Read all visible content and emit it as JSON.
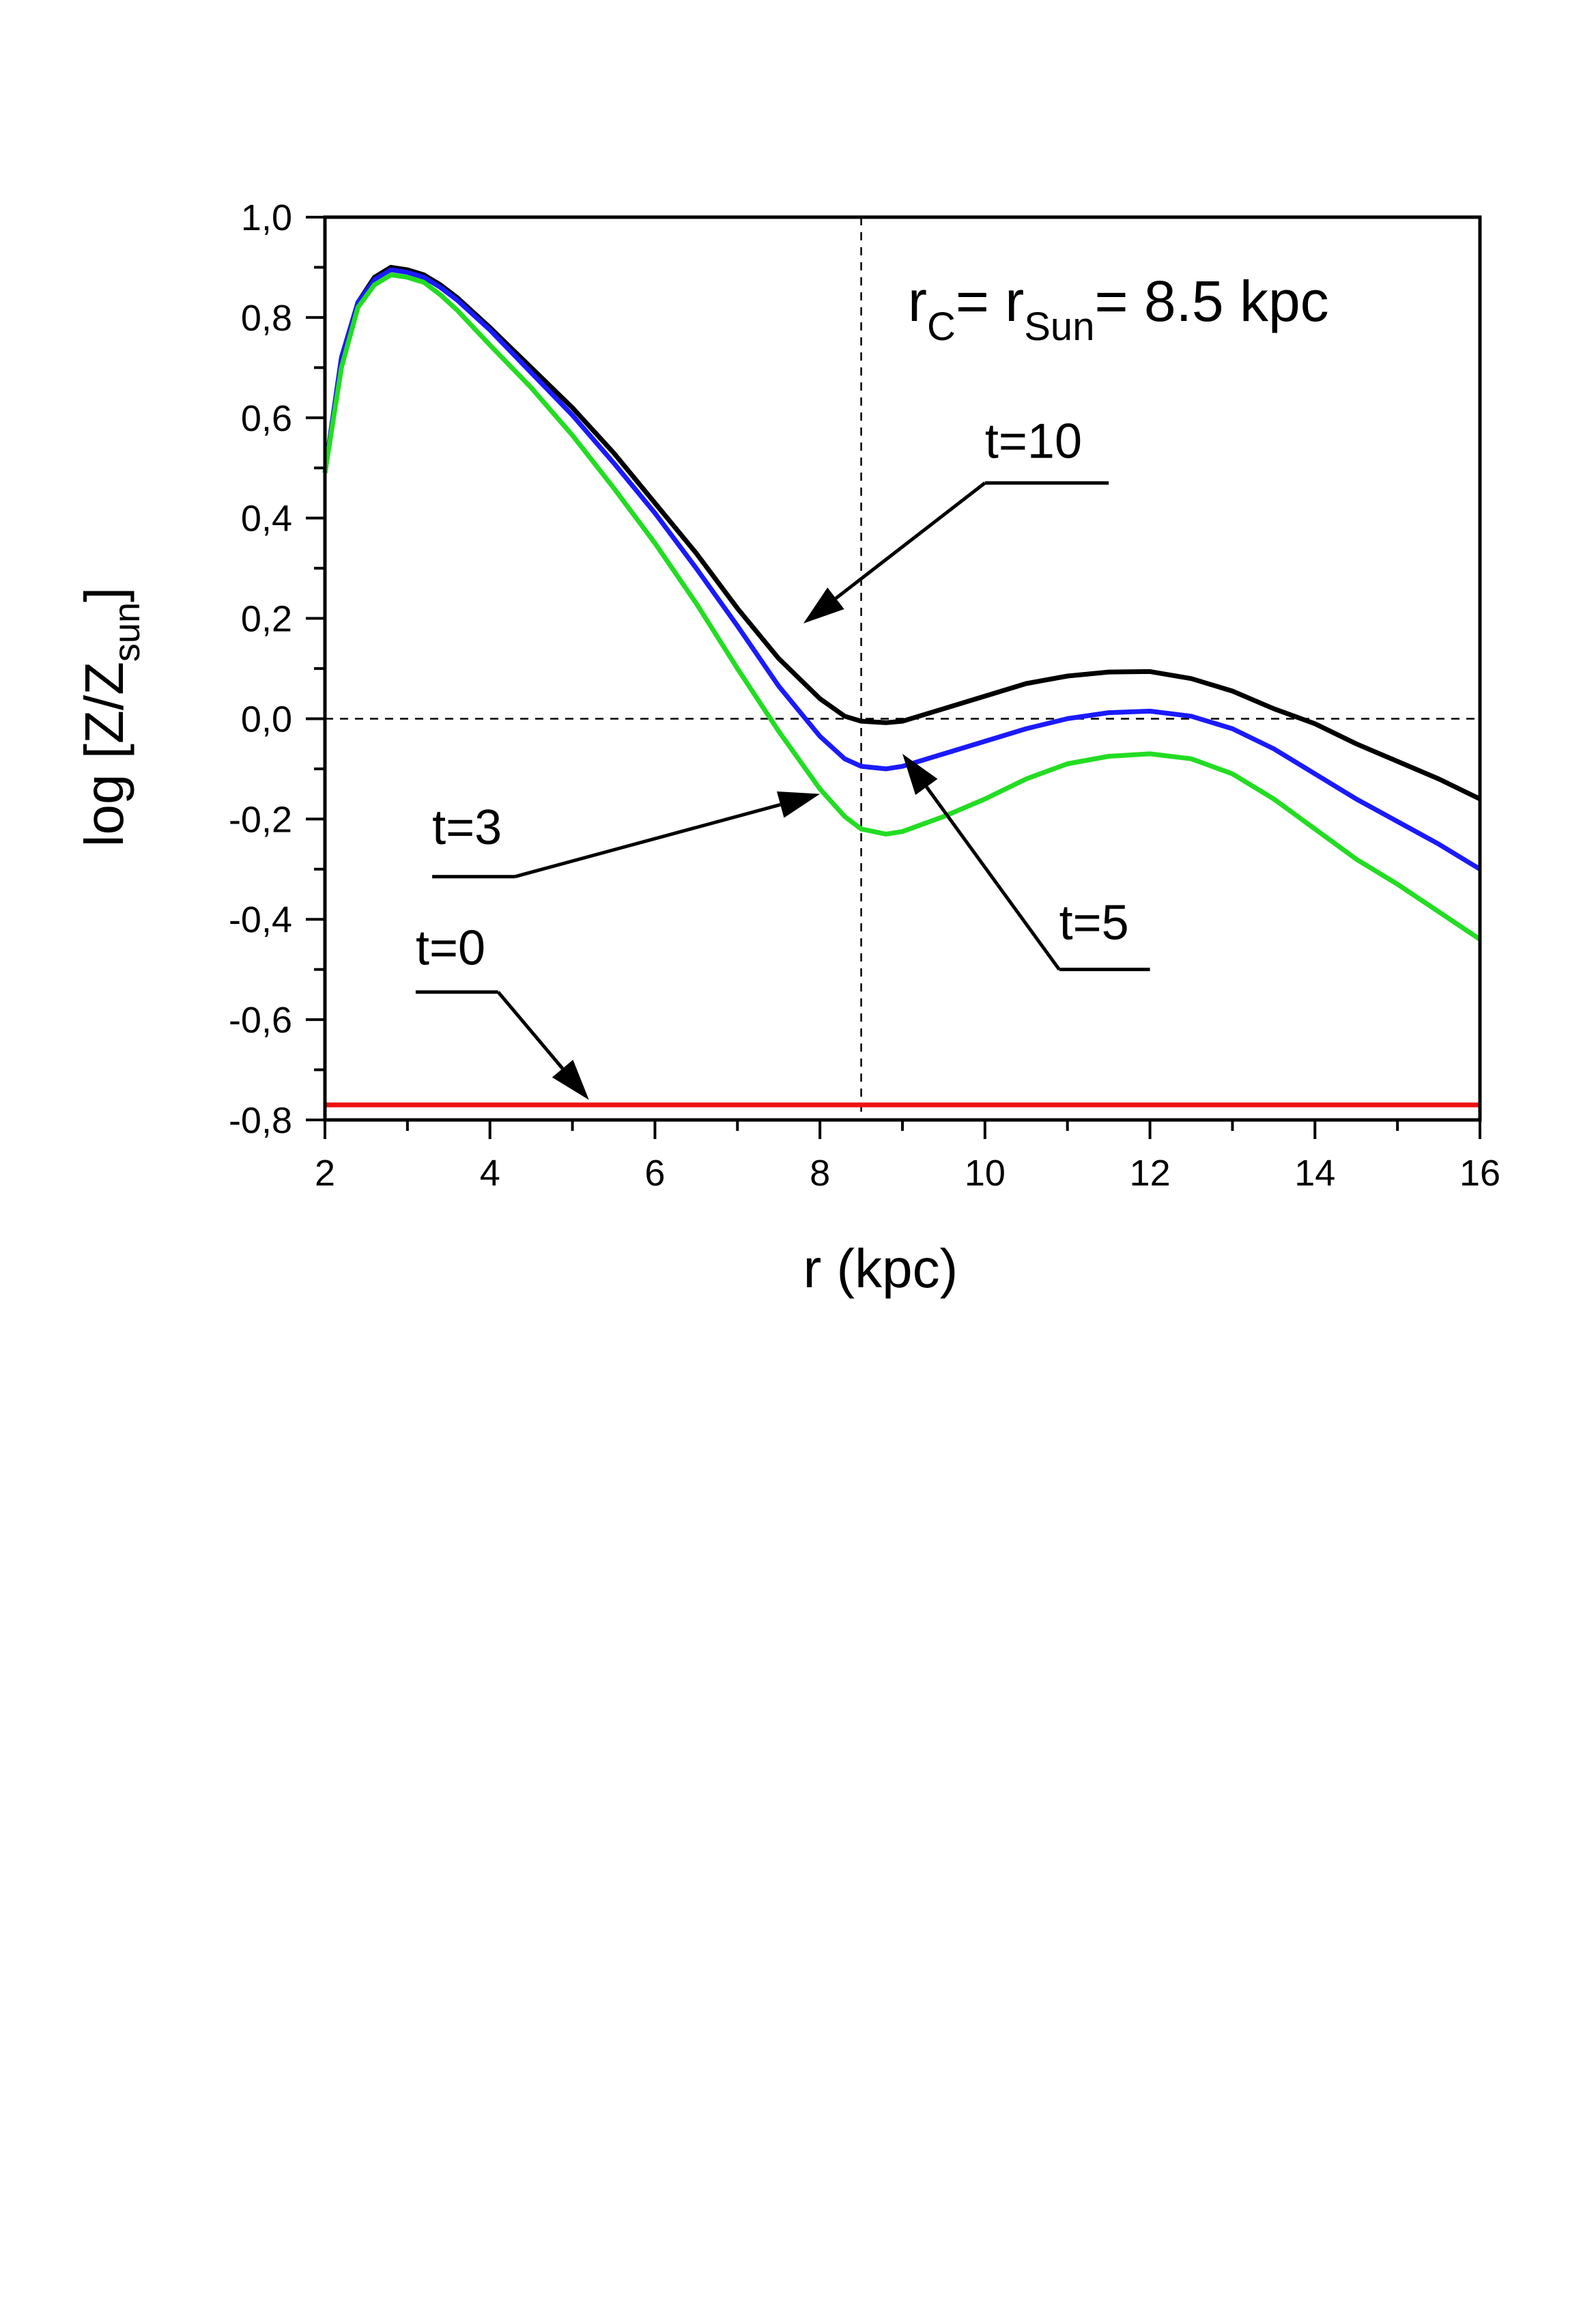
{
  "chart_data": {
    "type": "line",
    "xlabel": "r (kpc)",
    "ylabel": {
      "main": "log [Z/Z",
      "sub": "sun",
      "close": "]"
    },
    "xlim": [
      2,
      16
    ],
    "ylim": [
      -0.8,
      1.0
    ],
    "x_ticks": [
      2,
      4,
      6,
      8,
      10,
      12,
      14,
      16
    ],
    "x_tick_labels": [
      "2",
      "4",
      "6",
      "8",
      "10",
      "12",
      "14",
      "16"
    ],
    "y_ticks": [
      -0.8,
      -0.6,
      -0.4,
      -0.2,
      0.0,
      0.2,
      0.4,
      0.6,
      0.8,
      1.0
    ],
    "y_tick_labels": [
      "-0,8",
      "-0,6",
      "-0,4",
      "-0,2",
      "0,0",
      "0,2",
      "0,4",
      "0,6",
      "0,8",
      "1,0"
    ],
    "grid": false,
    "reference_lines": {
      "vertical_x": 8.5,
      "horizontal_y": 0.0
    },
    "equation": {
      "r": "r",
      "sub1": "C",
      "mid": "= r",
      "sub2": "Sun",
      "rest": "= 8.5 kpc"
    },
    "series": [
      {
        "name": "t=10",
        "color": "#000000",
        "points": [
          [
            2.0,
            0.49
          ],
          [
            2.2,
            0.72
          ],
          [
            2.4,
            0.83
          ],
          [
            2.6,
            0.88
          ],
          [
            2.8,
            0.9
          ],
          [
            3.0,
            0.895
          ],
          [
            3.2,
            0.885
          ],
          [
            3.4,
            0.865
          ],
          [
            3.6,
            0.84
          ],
          [
            3.8,
            0.81
          ],
          [
            4.0,
            0.78
          ],
          [
            4.5,
            0.7
          ],
          [
            5.0,
            0.62
          ],
          [
            5.5,
            0.53
          ],
          [
            6.0,
            0.43
          ],
          [
            6.5,
            0.33
          ],
          [
            7.0,
            0.22
          ],
          [
            7.5,
            0.12
          ],
          [
            8.0,
            0.04
          ],
          [
            8.3,
            0.005
          ],
          [
            8.5,
            -0.005
          ],
          [
            8.8,
            -0.008
          ],
          [
            9.0,
            -0.005
          ],
          [
            9.5,
            0.02
          ],
          [
            10.0,
            0.045
          ],
          [
            10.5,
            0.07
          ],
          [
            11.0,
            0.085
          ],
          [
            11.5,
            0.093
          ],
          [
            12.0,
            0.094
          ],
          [
            12.5,
            0.08
          ],
          [
            13.0,
            0.055
          ],
          [
            13.5,
            0.02
          ],
          [
            14.0,
            -0.01
          ],
          [
            14.5,
            -0.05
          ],
          [
            15.0,
            -0.085
          ],
          [
            15.5,
            -0.12
          ],
          [
            16.0,
            -0.16
          ]
        ]
      },
      {
        "name": "t=5",
        "color": "#1a1aff",
        "points": [
          [
            2.0,
            0.49
          ],
          [
            2.2,
            0.72
          ],
          [
            2.4,
            0.83
          ],
          [
            2.6,
            0.875
          ],
          [
            2.8,
            0.895
          ],
          [
            3.0,
            0.89
          ],
          [
            3.2,
            0.88
          ],
          [
            3.4,
            0.86
          ],
          [
            3.6,
            0.835
          ],
          [
            3.8,
            0.805
          ],
          [
            4.0,
            0.775
          ],
          [
            4.5,
            0.69
          ],
          [
            5.0,
            0.605
          ],
          [
            5.5,
            0.51
          ],
          [
            6.0,
            0.41
          ],
          [
            6.5,
            0.3
          ],
          [
            7.0,
            0.185
          ],
          [
            7.5,
            0.065
          ],
          [
            8.0,
            -0.035
          ],
          [
            8.3,
            -0.08
          ],
          [
            8.5,
            -0.095
          ],
          [
            8.8,
            -0.1
          ],
          [
            9.0,
            -0.095
          ],
          [
            9.5,
            -0.07
          ],
          [
            10.0,
            -0.045
          ],
          [
            10.5,
            -0.02
          ],
          [
            11.0,
            0.0
          ],
          [
            11.5,
            0.012
          ],
          [
            12.0,
            0.015
          ],
          [
            12.5,
            0.005
          ],
          [
            13.0,
            -0.02
          ],
          [
            13.5,
            -0.06
          ],
          [
            14.0,
            -0.11
          ],
          [
            14.5,
            -0.16
          ],
          [
            15.0,
            -0.205
          ],
          [
            15.5,
            -0.25
          ],
          [
            16.0,
            -0.3
          ]
        ]
      },
      {
        "name": "t=3",
        "color": "#22dd22",
        "points": [
          [
            2.0,
            0.49
          ],
          [
            2.2,
            0.7
          ],
          [
            2.4,
            0.82
          ],
          [
            2.6,
            0.865
          ],
          [
            2.8,
            0.885
          ],
          [
            3.0,
            0.88
          ],
          [
            3.2,
            0.87
          ],
          [
            3.4,
            0.845
          ],
          [
            3.6,
            0.815
          ],
          [
            3.8,
            0.78
          ],
          [
            4.0,
            0.745
          ],
          [
            4.5,
            0.66
          ],
          [
            5.0,
            0.565
          ],
          [
            5.5,
            0.46
          ],
          [
            6.0,
            0.35
          ],
          [
            6.5,
            0.23
          ],
          [
            7.0,
            0.1
          ],
          [
            7.5,
            -0.025
          ],
          [
            8.0,
            -0.14
          ],
          [
            8.3,
            -0.195
          ],
          [
            8.5,
            -0.22
          ],
          [
            8.8,
            -0.23
          ],
          [
            9.0,
            -0.225
          ],
          [
            9.5,
            -0.195
          ],
          [
            10.0,
            -0.16
          ],
          [
            10.5,
            -0.12
          ],
          [
            11.0,
            -0.09
          ],
          [
            11.5,
            -0.075
          ],
          [
            12.0,
            -0.07
          ],
          [
            12.5,
            -0.08
          ],
          [
            13.0,
            -0.11
          ],
          [
            13.5,
            -0.16
          ],
          [
            14.0,
            -0.22
          ],
          [
            14.5,
            -0.28
          ],
          [
            15.0,
            -0.33
          ],
          [
            15.5,
            -0.385
          ],
          [
            16.0,
            -0.44
          ]
        ]
      },
      {
        "name": "t=0",
        "color": "#ee1111",
        "points": [
          [
            2.0,
            -0.77
          ],
          [
            16.0,
            -0.77
          ]
        ]
      }
    ],
    "annotations": [
      {
        "label": "t=10",
        "tail": [
          11.5,
          0.47
        ],
        "elbow": [
          10.0,
          0.47
        ],
        "head": [
          7.8,
          0.19
        ],
        "label_pos": [
          10.0,
          0.52
        ]
      },
      {
        "label": "t=5",
        "tail": [
          12.0,
          -0.5
        ],
        "elbow": [
          10.9,
          -0.5
        ],
        "head": [
          9.0,
          -0.07
        ],
        "label_pos": [
          10.9,
          -0.44
        ]
      },
      {
        "label": "t=3",
        "tail": [
          3.3,
          -0.315
        ],
        "elbow": [
          4.3,
          -0.315
        ],
        "head": [
          8.0,
          -0.15
        ],
        "label_pos": [
          3.3,
          -0.25
        ]
      },
      {
        "label": "t=0",
        "tail": [
          3.1,
          -0.545
        ],
        "elbow": [
          4.1,
          -0.545
        ],
        "head": [
          5.2,
          -0.76
        ],
        "label_pos": [
          3.1,
          -0.49
        ]
      }
    ]
  }
}
